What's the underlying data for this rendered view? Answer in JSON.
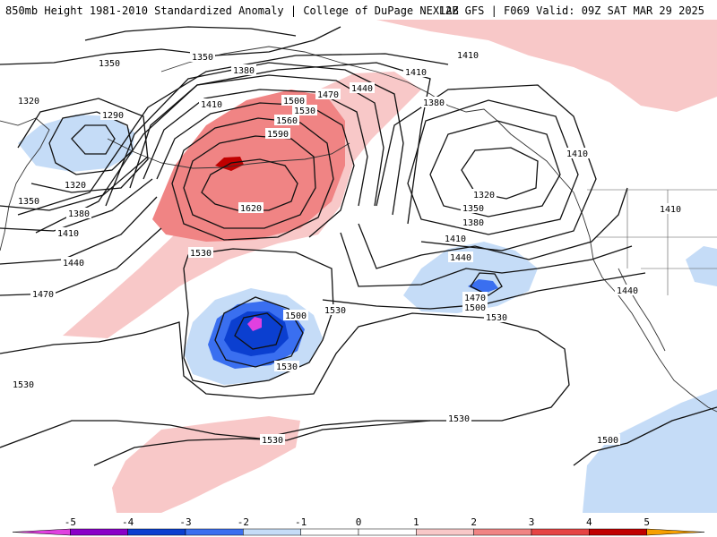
{
  "header": {
    "title_left": "850mb Height 1981-2010 Standardized Anomaly | College of DuPage NEXLAB",
    "title_right": "12Z GFS | F069 Valid: 09Z SAT MAR 29 2025"
  },
  "colors": {
    "neg5": "#e040e0",
    "neg4": "#8a00c8",
    "neg3": "#0b3fd0",
    "neg2": "#3a6ff0",
    "neg1": "#c5dcf7",
    "zero": "#ffffff",
    "pos1": "#f8c8c8",
    "pos2": "#f08484",
    "pos3": "#e54444",
    "pos4": "#c00000",
    "pos5": "#f7a000",
    "contour": "#111111",
    "coast": "#333333"
  },
  "contour_labels": {
    "l1350a": "1350",
    "l1350b": "1350",
    "l1380a": "1380",
    "l1410a": "1410",
    "l1440a": "1440",
    "l1410b": "1410",
    "l1410c": "1410",
    "l1380b": "1380",
    "l1470a": "1470",
    "l1500a": "1500",
    "l1530a": "1530",
    "l1560a": "1560",
    "l1590a": "1590",
    "l1620a": "1620",
    "l1320a": "1320",
    "l1290a": "1290",
    "l1320b": "1320",
    "l1350c": "1350",
    "l1380c": "1380",
    "l1410d": "1410",
    "l1440b": "1440",
    "l1470b": "1470",
    "l1530b": "1530",
    "l1530c": "1530",
    "l1500b": "1500",
    "l1530d": "1530",
    "l1320c": "1320",
    "l1350d": "1350",
    "l1380d": "1380",
    "l1410e": "1410",
    "l1440c": "1440",
    "l1470c": "1470",
    "l1500c": "1500",
    "l1530e": "1530",
    "l1530f": "1530",
    "l1530g": "1530",
    "l1530h": "1530",
    "l1500d": "1500",
    "l1410f": "1410",
    "l1410g": "1410",
    "l1440d": "1440"
  },
  "colorbar": {
    "ticks": [
      "-5",
      "-4",
      "-3",
      "-2",
      "-1",
      "0",
      "1",
      "2",
      "3",
      "4",
      "5"
    ]
  }
}
